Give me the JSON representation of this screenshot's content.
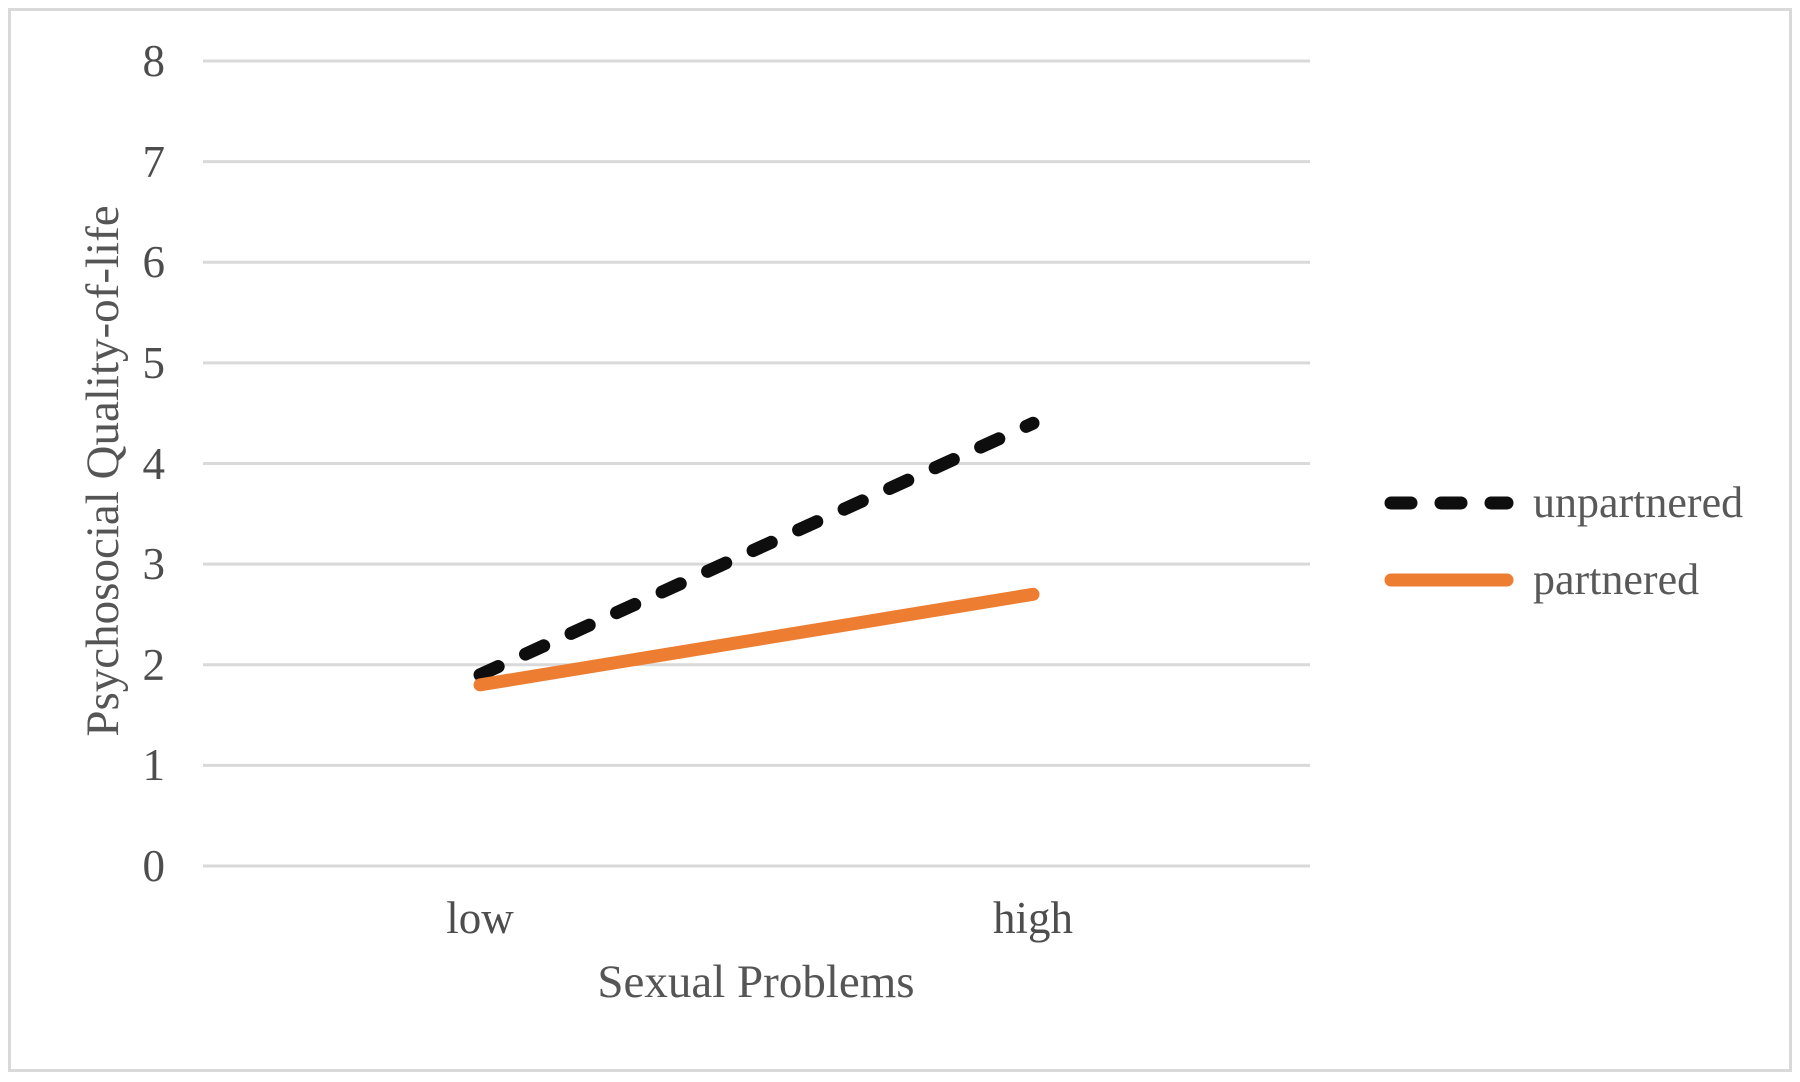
{
  "chart_data": {
    "type": "line",
    "title": "",
    "xlabel": "Sexual Problems",
    "ylabel": "Psychosocial Quality-of-life",
    "categories": [
      "low",
      "high"
    ],
    "series": [
      {
        "name": "unpartnered",
        "values": [
          1.9,
          4.4
        ],
        "color": "#0e0e0e",
        "line_style": "dashed"
      },
      {
        "name": "partnered",
        "values": [
          1.8,
          2.7
        ],
        "color": "#ED7D31",
        "line_style": "solid"
      }
    ],
    "ylim": [
      0,
      8
    ],
    "yticks": [
      0,
      1,
      2,
      3,
      4,
      5,
      6,
      7,
      8
    ],
    "grid": true,
    "legend_position": "right-middle",
    "colors": {
      "gridline": "#d9d9d9",
      "frame_border": "#d9d9d9",
      "tick_text": "#4d4d4d",
      "axis_title_text": "#555555",
      "legend_text": "#595959",
      "background": "#ffffff"
    }
  }
}
